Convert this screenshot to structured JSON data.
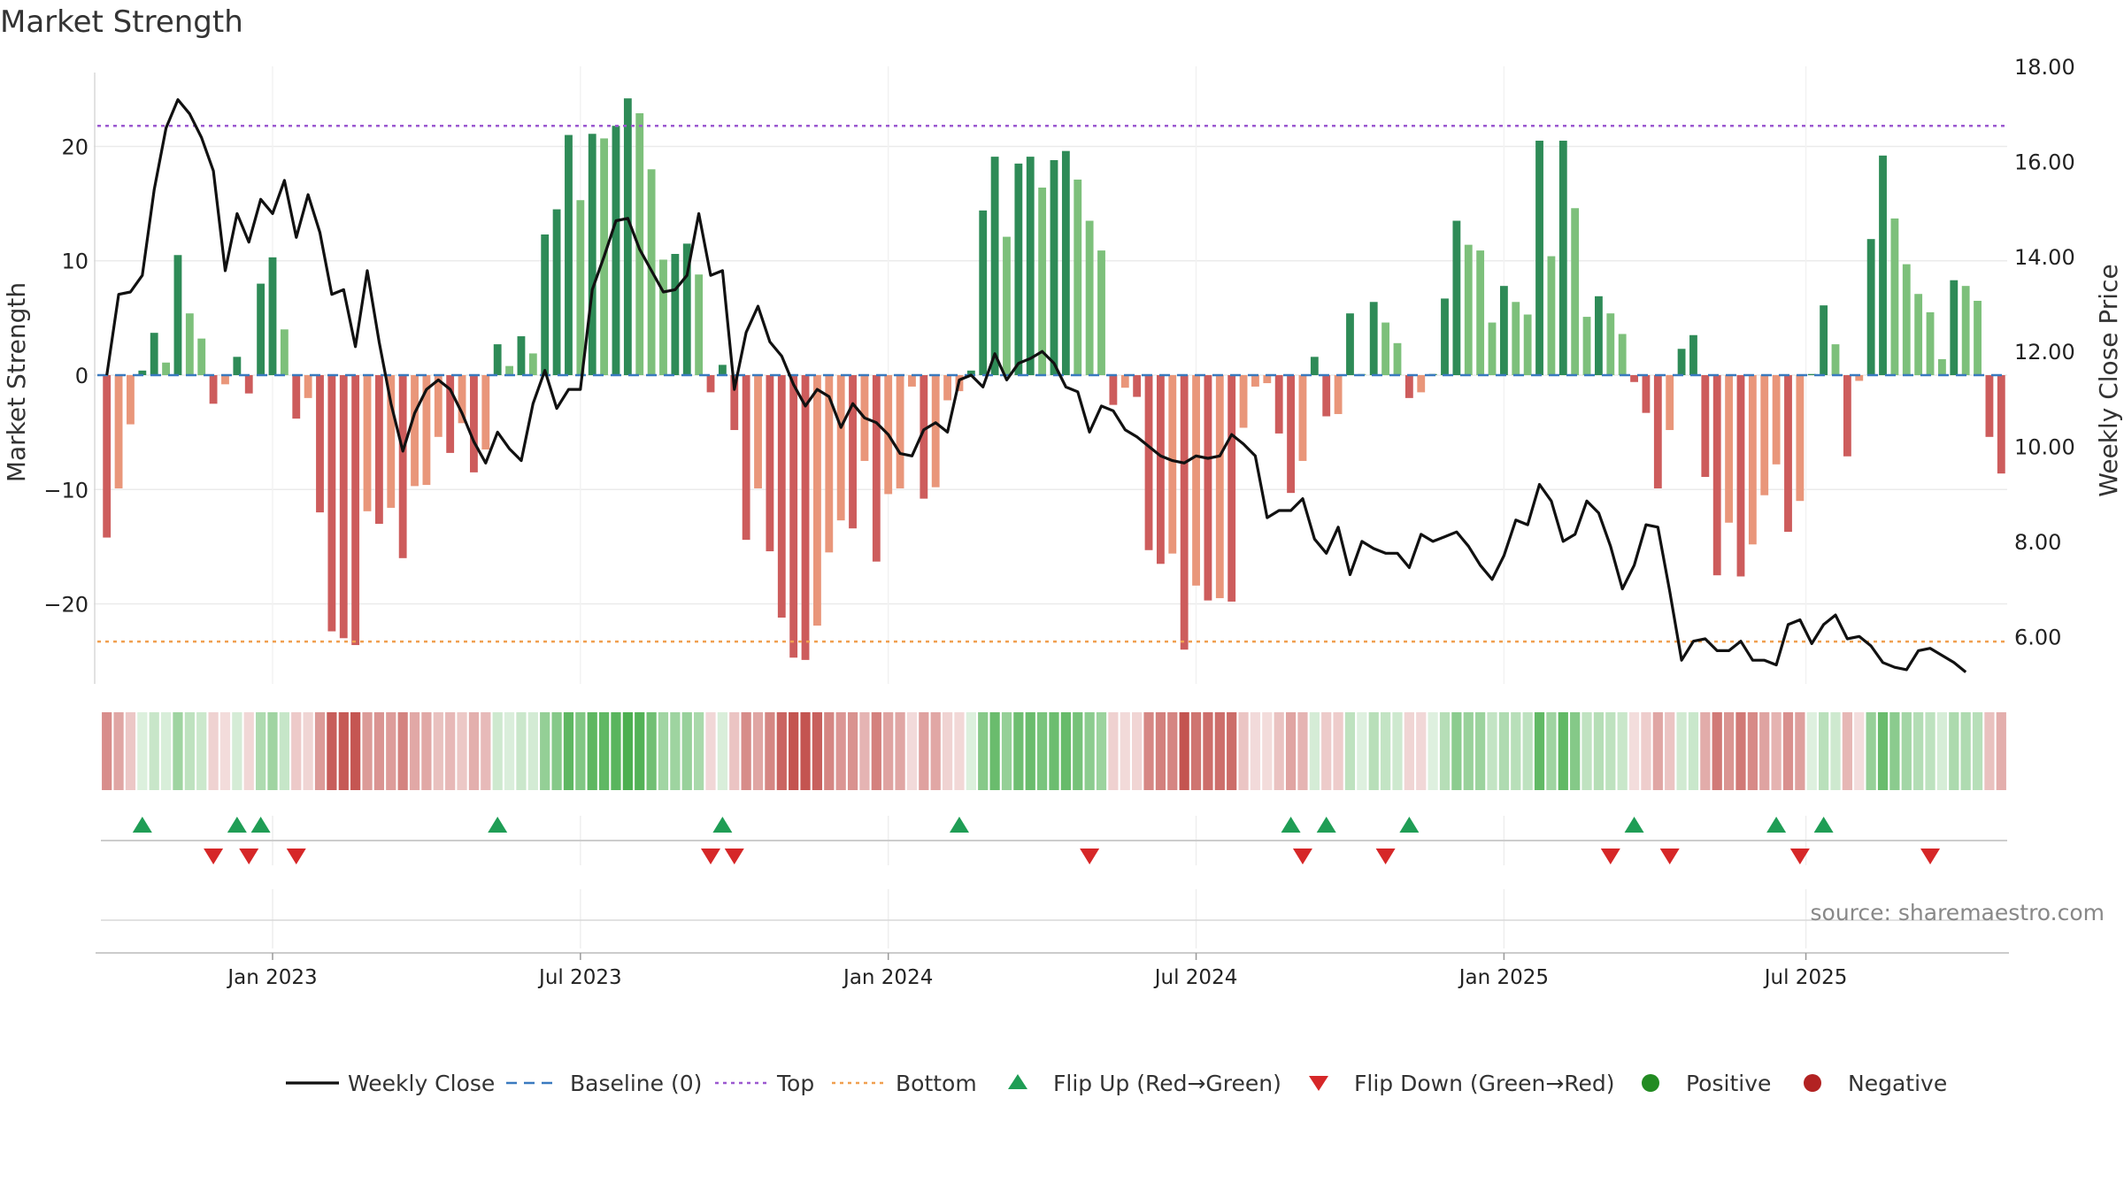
{
  "chart_data": {
    "type": "bar",
    "title": "Market Strength",
    "ylabel_left": "Market Strength",
    "ylabel_right": "Weekly Close Price",
    "ylim_left": [
      -27,
      27
    ],
    "ylim_right": [
      5.0,
      18.0
    ],
    "left_ticks": [
      {
        "value": 20,
        "label": "20"
      },
      {
        "value": 10,
        "label": "10"
      },
      {
        "value": 0,
        "label": "0"
      },
      {
        "value": -10,
        "label": "−10"
      },
      {
        "value": -20,
        "label": "−20"
      }
    ],
    "right_ticks": [
      {
        "value": 18,
        "label": "18.00"
      },
      {
        "value": 16,
        "label": "16.00"
      },
      {
        "value": 14,
        "label": "14.00"
      },
      {
        "value": 12,
        "label": "12.00"
      },
      {
        "value": 10,
        "label": "10.00"
      },
      {
        "value": 8,
        "label": "8.00"
      },
      {
        "value": 6,
        "label": "6.00"
      }
    ],
    "x_ticks": [
      {
        "week": 14.5,
        "label": "Jan 2023"
      },
      {
        "week": 40.5,
        "label": "Jul 2023"
      },
      {
        "week": 66.5,
        "label": "Jan 2024"
      },
      {
        "week": 92.5,
        "label": "Jul 2024"
      },
      {
        "week": 118.5,
        "label": "Jan 2025"
      },
      {
        "week": 144,
        "label": "Jul 2025"
      }
    ],
    "top_level": 21.8,
    "bottom_level": -23.3,
    "strength": [
      -14.2,
      -9.9,
      -4.3,
      0.4,
      3.7,
      1.1,
      10.5,
      5.4,
      3.2,
      -2.5,
      -0.8,
      1.6,
      -1.6,
      8.0,
      10.3,
      4.0,
      -3.8,
      -2.0,
      -12.0,
      -22.4,
      -23.0,
      -23.6,
      -11.9,
      -13.0,
      -11.6,
      -16.0,
      -9.7,
      -9.6,
      -5.4,
      -6.8,
      -4.2,
      -8.5,
      -6.5,
      2.7,
      0.8,
      3.4,
      1.9,
      12.3,
      14.5,
      21.0,
      15.3,
      21.1,
      20.7,
      21.8,
      24.2,
      22.9,
      18.0,
      10.1,
      10.6,
      11.5,
      8.8,
      -1.5,
      0.9,
      -4.8,
      -14.4,
      -9.9,
      -15.4,
      -21.2,
      -24.7,
      -24.9,
      -21.9,
      -15.5,
      -12.7,
      -13.4,
      -7.5,
      -16.3,
      -10.4,
      -9.9,
      -1.0,
      -10.8,
      -9.8,
      -2.2,
      -1.4,
      0.4,
      14.4,
      19.1,
      12.1,
      18.5,
      19.1,
      16.4,
      18.8,
      19.6,
      17.1,
      13.5,
      10.9,
      -2.6,
      -1.1,
      -1.9,
      -15.3,
      -16.5,
      -15.6,
      -24.0,
      -18.4,
      -19.7,
      -19.5,
      -19.8,
      -4.6,
      -1.0,
      -0.7,
      -5.1,
      -10.3,
      -7.5,
      1.6,
      -3.6,
      -3.4,
      5.4,
      0.1,
      6.4,
      4.6,
      2.8,
      -2.0,
      -1.5,
      0.1,
      6.7,
      13.5,
      11.4,
      10.9,
      4.6,
      7.8,
      6.4,
      5.3,
      20.5,
      10.4,
      20.5,
      14.6,
      5.1,
      6.9,
      5.4,
      3.6,
      -0.6,
      -3.3,
      -9.9,
      -4.8,
      2.3,
      3.5,
      -8.9,
      -17.5,
      -12.9,
      -17.6,
      -14.8,
      -10.5,
      -7.8,
      -13.7,
      -11.0,
      0.1,
      6.1,
      2.7,
      -7.1,
      -0.5,
      11.9,
      19.2,
      13.7,
      9.7,
      7.1,
      5.5,
      1.4,
      8.3,
      7.8,
      6.5,
      -5.4,
      -8.6
    ],
    "close": [
      11.5,
      13.2,
      13.25,
      13.6,
      15.4,
      16.7,
      17.3,
      17.0,
      16.5,
      15.8,
      13.7,
      14.9,
      14.3,
      15.2,
      14.9,
      15.6,
      14.4,
      15.3,
      14.5,
      13.2,
      13.3,
      12.1,
      13.7,
      12.2,
      10.9,
      9.9,
      10.7,
      11.2,
      11.4,
      11.2,
      10.7,
      10.1,
      9.65,
      10.3,
      9.95,
      9.7,
      10.9,
      11.6,
      10.8,
      11.2,
      11.2,
      13.3,
      14.0,
      14.75,
      14.8,
      14.15,
      13.7,
      13.25,
      13.3,
      13.6,
      14.9,
      13.6,
      13.7,
      11.2,
      12.4,
      12.95,
      12.2,
      11.9,
      11.3,
      10.85,
      11.2,
      11.05,
      10.4,
      10.9,
      10.6,
      10.5,
      10.25,
      9.85,
      9.8,
      10.35,
      10.5,
      10.3,
      11.4,
      11.5,
      11.25,
      11.95,
      11.4,
      11.75,
      11.85,
      12.0,
      11.75,
      11.25,
      11.15,
      10.3,
      10.85,
      10.75,
      10.35,
      10.2,
      10.0,
      9.8,
      9.7,
      9.65,
      9.8,
      9.75,
      9.8,
      10.25,
      10.05,
      9.8,
      8.5,
      8.65,
      8.65,
      8.9,
      8.05,
      7.75,
      8.3,
      7.3,
      8.0,
      7.85,
      7.75,
      7.75,
      7.45,
      8.15,
      8.0,
      8.1,
      8.2,
      7.9,
      7.5,
      7.2,
      7.7,
      8.45,
      8.35,
      9.2,
      8.85,
      8.0,
      8.15,
      8.85,
      8.6,
      7.9,
      7.0,
      7.5,
      8.35,
      8.3,
      6.95,
      5.5,
      5.9,
      5.95,
      5.7,
      5.7,
      5.9,
      5.5,
      5.5,
      5.4,
      6.25,
      6.35,
      5.85,
      6.25,
      6.45,
      5.95,
      6.0,
      5.8,
      5.45,
      5.35,
      5.3,
      5.7,
      5.75,
      5.6,
      5.45,
      5.25
    ],
    "flip_up_weeks": [
      3,
      11,
      13,
      33,
      52,
      72,
      100,
      103,
      110,
      129,
      141,
      145
    ],
    "flip_down_weeks": [
      9,
      12,
      16,
      51,
      53,
      83,
      101,
      108,
      127,
      132,
      143,
      154
    ],
    "heat_strip": "strength color per week (same sign/intensity mapping)"
  },
  "annotations": {
    "source": "source: sharemaestro.com"
  },
  "legend": [
    {
      "key": "close",
      "label": "Weekly Close"
    },
    {
      "key": "baseline",
      "label": "Baseline (0)"
    },
    {
      "key": "top",
      "label": "Top"
    },
    {
      "key": "bottom",
      "label": "Bottom"
    },
    {
      "key": "flip_up",
      "label": "Flip Up (Red→Green)"
    },
    {
      "key": "flip_down",
      "label": "Flip Down (Green→Red)"
    },
    {
      "key": "positive",
      "label": "Positive"
    },
    {
      "key": "negative",
      "label": "Negative"
    }
  ],
  "colors": {
    "green_dark": "#2e8b57",
    "green_light": "#7dc07b",
    "red_dark": "#cd5c5c",
    "red_light": "#e9967a",
    "baseline": "#3a7abf",
    "top": "#9b59d0",
    "bottom": "#f0a050",
    "flip_up": "#1f9d55",
    "flip_down": "#d62728",
    "positive": "#228b22",
    "negative": "#b22222",
    "close": "#111111"
  }
}
